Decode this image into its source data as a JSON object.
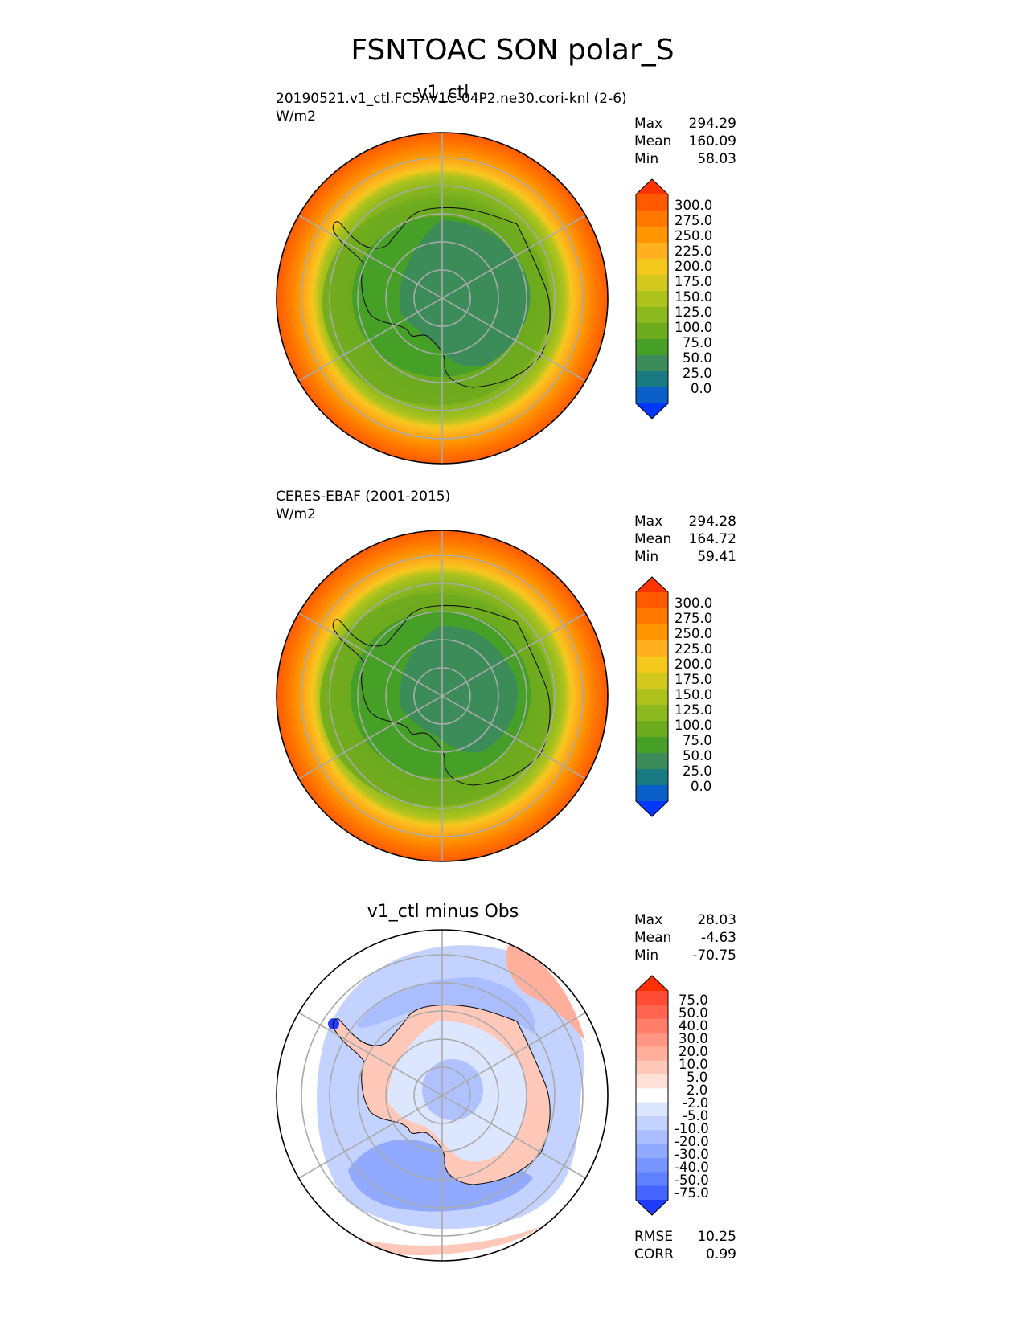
{
  "figure": {
    "title": "FSNTOAC SON polar_S"
  },
  "panels": [
    {
      "title": "v1_ctl",
      "case": "20190521.v1_ctl.FC5AV1C-04P2.ne30.cori-knl (2-6)",
      "units": "W/m2",
      "stats": {
        "max_label": "Max",
        "max": "294.29",
        "mean_label": "Mean",
        "mean": "160.09",
        "min_label": "Min",
        "min": "58.03"
      }
    },
    {
      "title": "",
      "case": "CERES-EBAF (2001-2015)",
      "units": "W/m2",
      "stats": {
        "max_label": "Max",
        "max": "294.28",
        "mean_label": "Mean",
        "mean": "164.72",
        "min_label": "Min",
        "min": "59.41"
      }
    },
    {
      "title": "v1_ctl minus Obs",
      "case": "",
      "units": "",
      "stats": {
        "max_label": "Max",
        "max": "28.03",
        "mean_label": "Mean",
        "mean": "-4.63",
        "min_label": "Min",
        "min": "-70.75"
      },
      "metrics": {
        "rmse_label": "RMSE",
        "rmse": "10.25",
        "corr_label": "CORR",
        "corr": "0.99"
      }
    }
  ],
  "colorbars": {
    "field": {
      "ticks": [
        "300.0",
        "275.0",
        "250.0",
        "225.0",
        "200.0",
        "175.0",
        "150.0",
        "125.0",
        "100.0",
        "75.0",
        "50.0",
        "25.0",
        "0.0"
      ],
      "colors": [
        "#ff3300",
        "#ff5a00",
        "#ff7800",
        "#ff9600",
        "#ffb01e",
        "#f5c81e",
        "#d2c81e",
        "#afc31e",
        "#8cb91e",
        "#6eaa1e",
        "#46a028",
        "#3c8c5a",
        "#197a82",
        "#0a5fc8",
        "#0037ff"
      ]
    },
    "diff": {
      "ticks": [
        "75.0",
        "50.0",
        "40.0",
        "30.0",
        "20.0",
        "10.0",
        "5.0",
        "2.0",
        "-2.0",
        "-5.0",
        "-10.0",
        "-20.0",
        "-30.0",
        "-40.0",
        "-50.0",
        "-75.0"
      ],
      "colors": [
        "#ff3000",
        "#ff4c34",
        "#ff6450",
        "#ff7d69",
        "#ff9682",
        "#ffaf9b",
        "#ffc8b9",
        "#ffe1d7",
        "#ffffff",
        "#dde6ff",
        "#c3d2ff",
        "#aabeff",
        "#91aaff",
        "#7896ff",
        "#5f80ff",
        "#4664ff",
        "#1e3cff"
      ]
    }
  }
}
